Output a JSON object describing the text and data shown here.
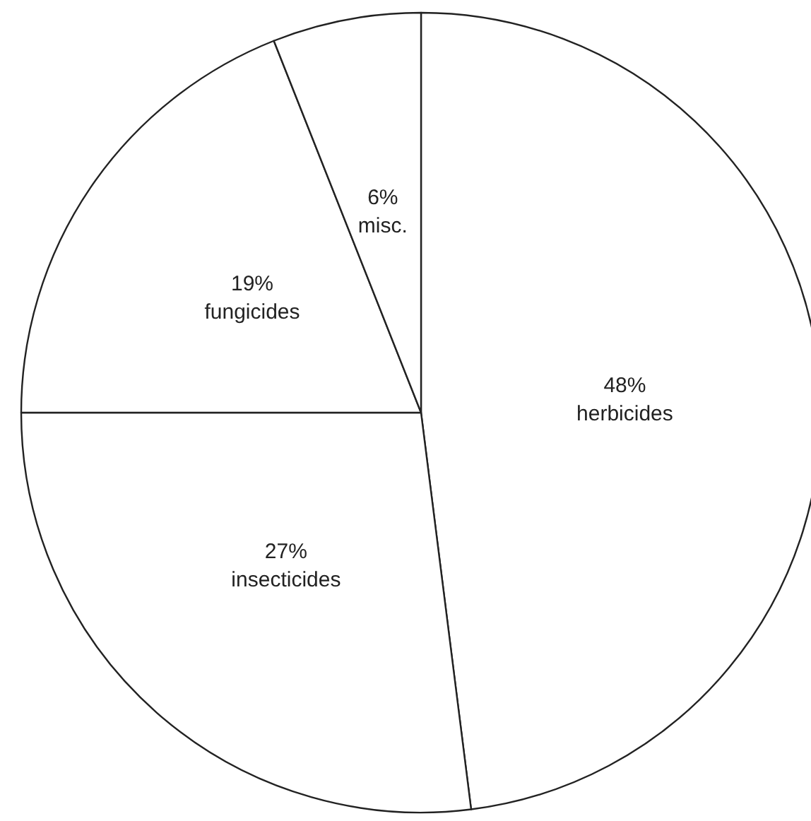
{
  "chart_data": {
    "type": "pie",
    "categories": [
      "herbicides",
      "insecticides",
      "fungicides",
      "misc."
    ],
    "values": [
      48,
      27,
      19,
      6
    ],
    "value_labels": [
      "48%",
      "27%",
      "19%",
      "6%"
    ],
    "colors": [
      "#ffffff",
      "#ffffff",
      "#ffffff",
      "#ffffff"
    ],
    "legend": false
  }
}
